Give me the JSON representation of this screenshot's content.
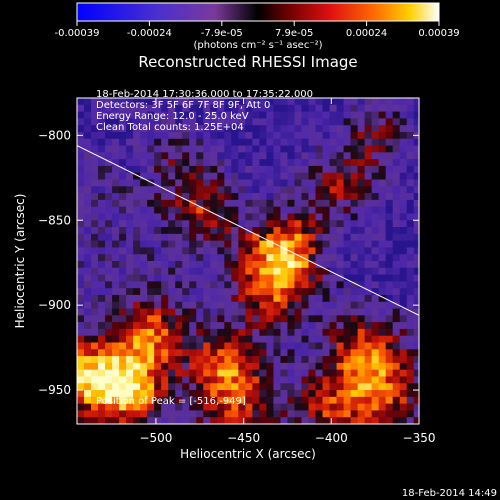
{
  "colorbar": {
    "tick_labels": [
      "-0.00039",
      "-0.00024",
      "-7.9e-05",
      "7.9e-05",
      "0.00024",
      "0.00039"
    ],
    "units": "(photons cm⁻² s⁻¹ asec⁻²)",
    "range": [
      -0.00039,
      0.00039
    ]
  },
  "chart_data": {
    "type": "heatmap",
    "title": "Reconstructed RHESSI Image",
    "xlabel": "Heliocentric X (arcsec)",
    "ylabel": "Heliocentric Y (arcsec)",
    "xlim": [
      -545,
      -350
    ],
    "ylim": [
      -970,
      -778
    ],
    "x_ticks": [
      -500,
      -450,
      -400,
      -350
    ],
    "y_ticks": [
      -800,
      -850,
      -900,
      -950
    ],
    "x_tick_labels": [
      "−500",
      "−450",
      "−400",
      "−350"
    ],
    "y_tick_labels": [
      "−800",
      "−850",
      "−900",
      "−950"
    ],
    "annotations": [
      "18-Feb-2014 17:30:36.000 to 17:35:22.000",
      "Detectors: 3F 5F 6F 7F 8F 9F, Att 0",
      "Energy Range: 12.0 - 25.0 keV",
      "Clean    Total counts: 1.25E+04"
    ],
    "peak_label": "Position of Peak = [-516,-949]",
    "peak_position": [
      -516,
      -949
    ],
    "limb_line": [
      [
        -545,
        -806
      ],
      [
        -350,
        -906
      ]
    ],
    "bright_sources": [
      {
        "x": -425,
        "y": -865,
        "strength": 1.0
      },
      {
        "x": -516,
        "y": -949,
        "strength": 1.0
      },
      {
        "x": -540,
        "y": -942,
        "strength": 0.9
      },
      {
        "x": -505,
        "y": -918,
        "strength": 0.75
      },
      {
        "x": -460,
        "y": -935,
        "strength": 0.7
      },
      {
        "x": -380,
        "y": -930,
        "strength": 0.75
      },
      {
        "x": -435,
        "y": -890,
        "strength": 0.65
      },
      {
        "x": -470,
        "y": -840,
        "strength": 0.55
      },
      {
        "x": -395,
        "y": -830,
        "strength": 0.6
      },
      {
        "x": -375,
        "y": -800,
        "strength": 0.5
      },
      {
        "x": -400,
        "y": -960,
        "strength": 0.55
      },
      {
        "x": -455,
        "y": -960,
        "strength": 0.5
      },
      {
        "x": -370,
        "y": -955,
        "strength": 0.55
      },
      {
        "x": -490,
        "y": -815,
        "strength": 0.4
      }
    ]
  },
  "footer": {
    "timestamp": "18-Feb-2014 14:49"
  }
}
